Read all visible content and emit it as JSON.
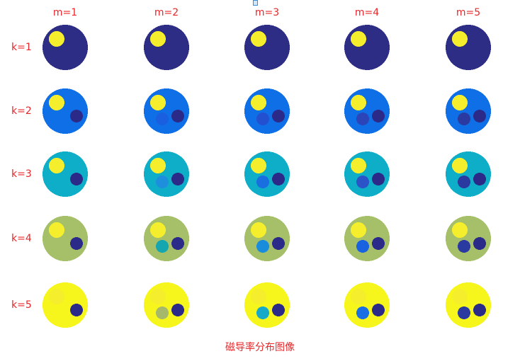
{
  "columns": [
    "m=1",
    "m=2",
    "m=3",
    "m=4",
    "m=5"
  ],
  "rows": [
    "k=1",
    "k=2",
    "k=3",
    "k=4",
    "k=5"
  ],
  "caption": "磁导率分布图像",
  "colors": {
    "label": "#e8262a",
    "yellow_inclusion": "#f4ee2c",
    "dark_inclusion": "#2b2a88",
    "background_by_row": [
      "#2e2d86",
      "#0f6fe6",
      "#0eaec8",
      "#a6c06a",
      "#f6f61c"
    ],
    "mid_inclusion": [
      [
        "#2e2d86",
        "#2e2d86",
        "#2e2d86",
        "#2e2d86",
        "#2e2d86"
      ],
      [
        "#0f6fe6",
        "#1a5fe0",
        "#2350d0",
        "#2b45b8",
        "#2b3aa0"
      ],
      [
        "#0eaec8",
        "#1d8fdc",
        "#1a6fe0",
        "#2a54c8",
        "#2b3aa0"
      ],
      [
        "#a6c06a",
        "#16a6b0",
        "#1a8cdc",
        "#1a63e0",
        "#2b3aa0"
      ],
      [
        "#f6f61c",
        "#a6b86a",
        "#16a9c8",
        "#1a6fe4",
        "#2b3aa0"
      ]
    ]
  }
}
